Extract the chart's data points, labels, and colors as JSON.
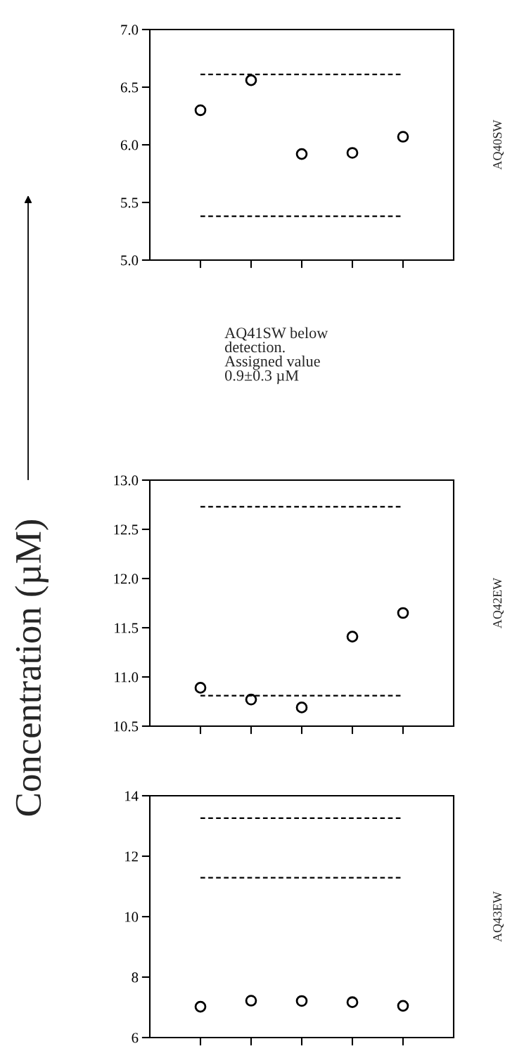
{
  "chart_data": [
    {
      "type": "scatter",
      "y2label": "AQ40SW",
      "categories": [
        null,
        null,
        null,
        null,
        null
      ],
      "marker": "circle",
      "tick_labels": "y",
      "grid": false,
      "legend": false,
      "series": [
        {
          "color": "#000000",
          "values": [
            6.3,
            6.56,
            5.92,
            5.93,
            6.07
          ]
        }
      ],
      "ylim": [
        5.0,
        7.0
      ],
      "yticks": [
        {
          "value": 5.0,
          "label": "5.0"
        },
        {
          "value": 5.5,
          "label": "5.5"
        },
        {
          "value": 6.0,
          "label": "6.0"
        },
        {
          "value": 6.5,
          "label": "6.5"
        },
        {
          "value": 7.0,
          "label": "7.0"
        }
      ],
      "ref_lines": [
        {
          "axis": "y",
          "value": 6.61,
          "line_style": "dashed",
          "color": "#000000"
        },
        {
          "axis": "y",
          "value": 5.38,
          "line_style": "dashed",
          "color": "#000000"
        }
      ]
    },
    {
      "type": "other",
      "ylabel": "Concentration (µM)",
      "annotations": [
        "AQ41SW below\ndetection.\nAssigned value\n0.9±0.3 µM"
      ]
    },
    {
      "type": "scatter",
      "y2label": "AQ42EW",
      "categories": [
        null,
        null,
        null,
        null,
        null
      ],
      "marker": "circle",
      "tick_labels": "y",
      "grid": false,
      "legend": false,
      "series": [
        {
          "color": "#000000",
          "values": [
            10.89,
            10.77,
            10.69,
            11.41,
            11.65
          ]
        }
      ],
      "ylim": [
        10.5,
        13.0
      ],
      "yticks": [
        {
          "value": 10.5,
          "label": "10.5"
        },
        {
          "value": 11.0,
          "label": "11.0"
        },
        {
          "value": 11.5,
          "label": "11.5"
        },
        {
          "value": 12.0,
          "label": "12.0"
        },
        {
          "value": 12.5,
          "label": "12.5"
        },
        {
          "value": 13.0,
          "label": "13.0"
        }
      ],
      "ref_lines": [
        {
          "axis": "y",
          "value": 12.73,
          "line_style": "dashed",
          "color": "#000000"
        },
        {
          "axis": "y",
          "value": 10.81,
          "line_style": "dashed",
          "color": "#000000"
        }
      ]
    },
    {
      "type": "scatter",
      "y2label": "AQ43EW",
      "categories": [
        null,
        null,
        null,
        null,
        null
      ],
      "marker": "circle",
      "tick_labels": "y",
      "grid": false,
      "legend": false,
      "series": [
        {
          "color": "#000000",
          "values": [
            7.02,
            7.22,
            7.21,
            7.17,
            7.05
          ]
        }
      ],
      "ylim": [
        6,
        14
      ],
      "yticks": [
        6,
        8,
        10,
        12,
        14
      ],
      "ref_lines": [
        {
          "axis": "y",
          "value": 13.26,
          "line_style": "dashed",
          "color": "#000000"
        },
        {
          "axis": "y",
          "value": 11.29,
          "line_style": "dashed",
          "color": "#000000"
        }
      ]
    }
  ]
}
